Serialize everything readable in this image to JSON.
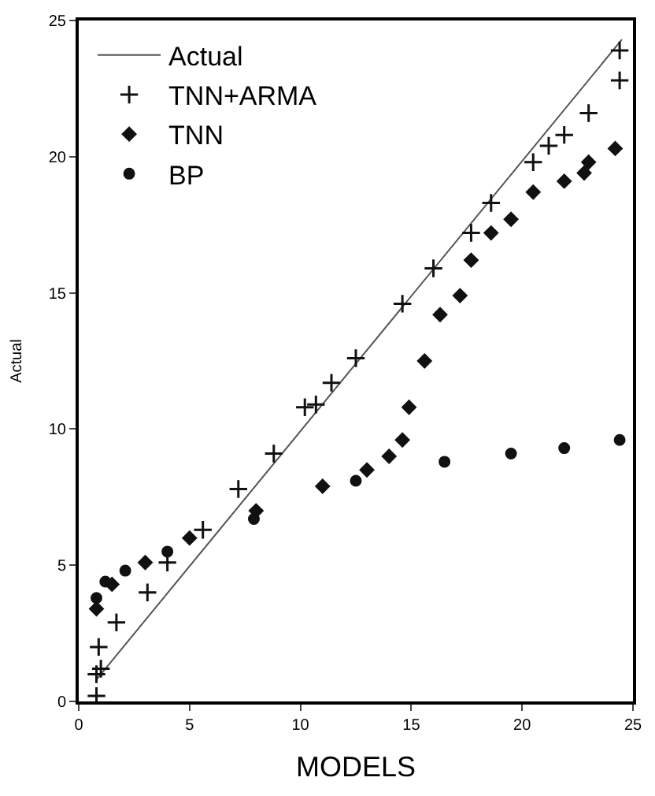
{
  "chart_data": {
    "type": "scatter",
    "xlabel": "MODELS",
    "ylabel": "Actual",
    "xlim": [
      0,
      25
    ],
    "ylim": [
      0,
      25
    ],
    "xticks": [
      0,
      5,
      10,
      15,
      20,
      25
    ],
    "yticks": [
      0,
      5,
      10,
      15,
      20,
      25
    ],
    "legend": "top left",
    "series": [
      {
        "name": "Actual",
        "type": "line",
        "color": "#555555",
        "marker": "none",
        "line_style": "solid",
        "x": [
          0.8,
          24.5
        ],
        "values": [
          0.8,
          24.3
        ]
      },
      {
        "name": "TNN+ARMA",
        "color": "#111111",
        "marker": "cross",
        "x": [
          0.8,
          0.8,
          0.9,
          1.0,
          1.7,
          3.1,
          4.0,
          5.6,
          7.2,
          8.8,
          10.2,
          10.7,
          11.4,
          12.5,
          14.6,
          16.0,
          17.7,
          18.6,
          20.5,
          21.2,
          21.9,
          23.0,
          24.4,
          24.4
        ],
        "values": [
          0.2,
          1.0,
          2.0,
          1.2,
          2.9,
          4.0,
          5.1,
          6.3,
          7.8,
          9.1,
          10.8,
          10.9,
          11.7,
          12.6,
          14.6,
          15.9,
          17.2,
          18.3,
          19.8,
          20.4,
          20.8,
          21.6,
          22.8,
          23.9
        ]
      },
      {
        "name": "TNN",
        "color": "#111111",
        "marker": "diamond",
        "x": [
          0.8,
          1.5,
          3.0,
          5.0,
          8.0,
          11.0,
          13.0,
          14.0,
          14.6,
          14.9,
          15.6,
          16.3,
          17.2,
          17.7,
          18.6,
          19.5,
          20.5,
          21.9,
          22.8,
          23.0,
          24.2
        ],
        "values": [
          3.4,
          4.3,
          5.1,
          6.0,
          7.0,
          7.9,
          8.5,
          9.0,
          9.6,
          10.8,
          12.5,
          14.2,
          14.9,
          16.2,
          17.2,
          17.7,
          18.7,
          19.1,
          19.4,
          19.8,
          20.3
        ]
      },
      {
        "name": "BP",
        "color": "#111111",
        "marker": "circle",
        "x": [
          0.8,
          1.2,
          2.1,
          4.0,
          7.9,
          12.5,
          16.5,
          19.5,
          21.9,
          24.4
        ],
        "values": [
          3.8,
          4.4,
          4.8,
          5.5,
          6.7,
          8.1,
          8.8,
          9.1,
          9.3,
          9.6
        ]
      }
    ]
  }
}
